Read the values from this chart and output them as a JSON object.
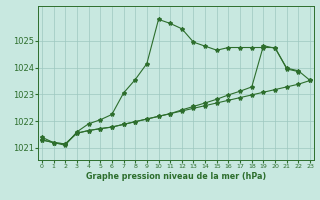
{
  "title": "Graphe pression niveau de la mer (hPa)",
  "bg_color": "#c8e8e0",
  "grid_color": "#9dc8c0",
  "line_color": "#2d6e2d",
  "x_ticks": [
    0,
    1,
    2,
    3,
    4,
    5,
    6,
    7,
    8,
    9,
    10,
    11,
    12,
    13,
    14,
    15,
    16,
    17,
    18,
    19,
    20,
    21,
    22,
    23
  ],
  "xlim": [
    -0.3,
    23.3
  ],
  "ylim": [
    1020.55,
    1026.3
  ],
  "yticks": [
    1021,
    1022,
    1023,
    1024,
    1025
  ],
  "series": [
    [
      1021.4,
      1021.2,
      1021.1,
      1021.6,
      1021.9,
      1022.05,
      1022.25,
      1023.05,
      1023.55,
      1024.15,
      1025.8,
      1025.65,
      1025.45,
      1024.95,
      1024.8,
      1024.65,
      1024.75,
      1024.75,
      1024.75,
      1024.75,
      1024.75,
      1023.95,
      1023.85
    ],
    [
      1021.3,
      1021.2,
      1021.15,
      1021.55,
      1021.65,
      1021.72,
      1021.78,
      1021.88,
      1021.98,
      1022.08,
      1022.18,
      1022.28,
      1022.38,
      1022.48,
      1022.58,
      1022.68,
      1022.78,
      1022.88,
      1022.98,
      1023.08,
      1023.18,
      1023.28,
      1023.38,
      1023.52
    ],
    [
      1021.3,
      1021.2,
      1021.15,
      1021.55,
      1021.65,
      1021.72,
      1021.78,
      1021.88,
      1021.98,
      1022.08,
      1022.18,
      1022.28,
      1022.42,
      1022.55,
      1022.68,
      1022.82,
      1022.98,
      1023.12,
      1023.28,
      1024.82,
      1024.72,
      1023.98,
      1023.88,
      1023.52
    ]
  ],
  "series_x": [
    [
      0,
      1,
      2,
      3,
      4,
      5,
      6,
      7,
      8,
      9,
      10,
      11,
      12,
      13,
      14,
      15,
      16,
      17,
      18,
      19,
      20,
      21,
      22
    ],
    [
      0,
      1,
      2,
      3,
      4,
      5,
      6,
      7,
      8,
      9,
      10,
      11,
      12,
      13,
      14,
      15,
      16,
      17,
      18,
      19,
      20,
      21,
      22,
      23
    ],
    [
      0,
      1,
      2,
      3,
      4,
      5,
      6,
      7,
      8,
      9,
      10,
      11,
      12,
      13,
      14,
      15,
      16,
      17,
      18,
      19,
      20,
      21,
      22,
      23
    ]
  ],
  "ytick_fontsize": 6.0,
  "xtick_fontsize": 4.5,
  "xlabel_fontsize": 5.8
}
